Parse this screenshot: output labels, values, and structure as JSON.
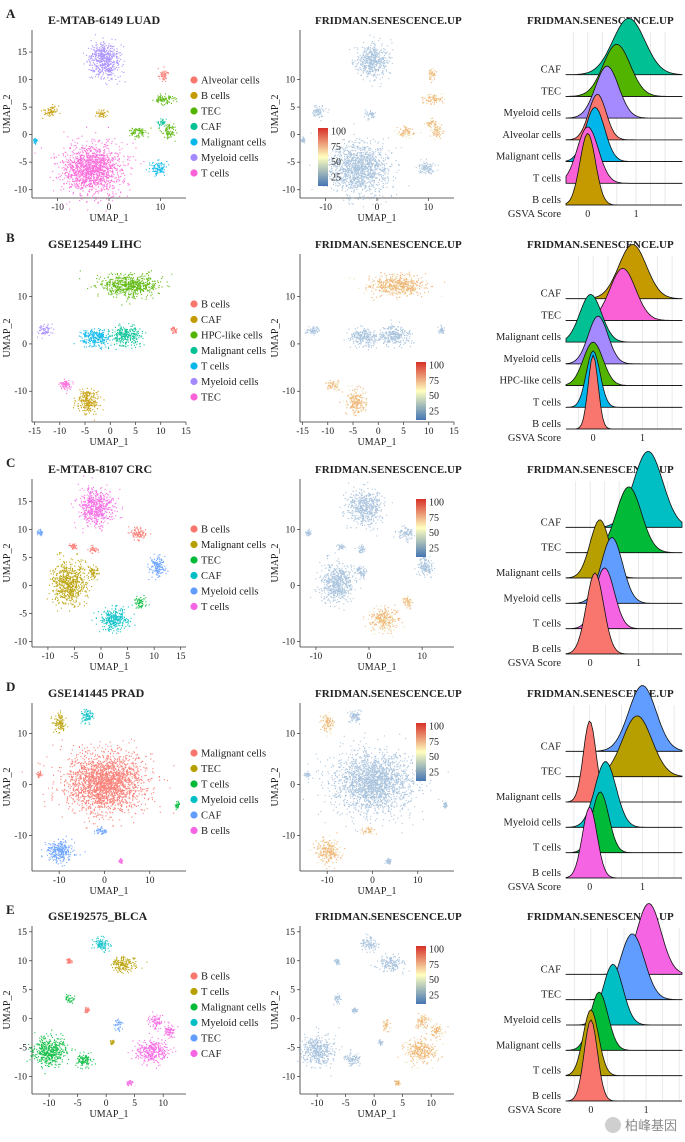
{
  "panels": [
    {
      "letter": "A",
      "dataset": "E-MTAB-6149 LUAD",
      "score_title": "FRIDMAN.SENESCENCE.UP",
      "ridge_title": "FRIDMAN.SENESCENCE.UP",
      "umap": {
        "xlabel": "UMAP_1",
        "ylabel": "UMAP_2",
        "xlim": [
          -15,
          15
        ],
        "ylim": [
          -11.5,
          19
        ],
        "xticks": [
          -10,
          0,
          10
        ],
        "yticks": [
          -10,
          -5,
          0,
          5,
          10,
          15
        ],
        "clusters": [
          {
            "label": "Myeloid cells",
            "x": -1,
            "y": 13.5,
            "rx": 3.3,
            "ry": 3.5
          },
          {
            "label": "T cells",
            "x": -3.5,
            "y": -6,
            "rx": 6.5,
            "ry": 5
          },
          {
            "label": "Alveolar cells",
            "x": 10.5,
            "y": 11,
            "rx": 1,
            "ry": 1.3
          },
          {
            "label": "TEC",
            "x": 10.8,
            "y": 6.5,
            "rx": 2.3,
            "ry": 0.9
          },
          {
            "label": "B cells",
            "x": -11.5,
            "y": 4.3,
            "rx": 1.5,
            "ry": 1.1
          },
          {
            "label": "B cells",
            "x": -1.5,
            "y": 3.8,
            "rx": 1.2,
            "ry": 0.8
          },
          {
            "label": "CAF",
            "x": 10.2,
            "y": 2.2,
            "rx": 0.9,
            "ry": 0.8
          },
          {
            "label": "TEC",
            "x": 5.5,
            "y": 0.5,
            "rx": 1.8,
            "ry": 1
          },
          {
            "label": "TEC",
            "x": 11.5,
            "y": 0.8,
            "rx": 1.2,
            "ry": 1.5
          },
          {
            "label": "Malignant cells",
            "x": 9.5,
            "y": -6,
            "rx": 1.8,
            "ry": 1.3
          },
          {
            "label": "Malignant cells",
            "x": -14.5,
            "y": -1,
            "rx": 0.4,
            "ry": 0.5
          }
        ],
        "legend": [
          "Alveolar cells",
          "B cells",
          "TEC",
          "CAF",
          "Malignant cells",
          "Myeloid cells",
          "T cells"
        ]
      },
      "score_umap": {
        "xlabel": "UMAP_1",
        "ylabel": "UMAP_2",
        "xticks": [
          -10,
          0,
          10
        ],
        "yticks": [
          -10,
          -5,
          0,
          5,
          10
        ],
        "colorbar_ticks": [
          100,
          75,
          50,
          25
        ],
        "colorbar_place": "left"
      },
      "ridge": {
        "xlabel": "GSVA Score",
        "xticks": [
          0,
          1
        ],
        "xlim": [
          -0.45,
          1.95
        ],
        "rows": [
          {
            "label": "CAF",
            "mean": 0.85,
            "sd": 0.33,
            "height": 2.6
          },
          {
            "label": "TEC",
            "mean": 0.6,
            "sd": 0.28,
            "height": 2.4
          },
          {
            "label": "Myeloid cells",
            "mean": 0.4,
            "sd": 0.24,
            "height": 2.4
          },
          {
            "label": "Alveolar cells",
            "mean": 0.2,
            "sd": 0.18,
            "height": 2.1
          },
          {
            "label": "Malignant cells",
            "mean": 0.15,
            "sd": 0.2,
            "height": 2.5
          },
          {
            "label": "T cells",
            "mean": 0.0,
            "sd": 0.22,
            "height": 2.6
          },
          {
            "label": "B cells",
            "mean": 0.0,
            "sd": 0.16,
            "height": 3.3
          }
        ]
      }
    },
    {
      "letter": "B",
      "dataset": "GSE125449 LIHC",
      "score_title": "FRIDMAN.SENESCENCE.UP",
      "ridge_title": "FRIDMAN.SENESCENCE.UP",
      "umap": {
        "xlabel": "UMAP_1",
        "ylabel": "UMAP_2",
        "xlim": [
          -15.5,
          15
        ],
        "ylim": [
          -16.5,
          19
        ],
        "xticks": [
          -15,
          -10,
          -5,
          0,
          5,
          10,
          15
        ],
        "yticks": [
          -10,
          0,
          10
        ],
        "clusters": [
          {
            "label": "HPC-like cells",
            "x": 3.5,
            "y": 12.5,
            "rx": 6.5,
            "ry": 2.5
          },
          {
            "label": "Myeloid cells",
            "x": -13,
            "y": 3,
            "rx": 1.6,
            "ry": 1.2
          },
          {
            "label": "T cells",
            "x": -3,
            "y": 1.5,
            "rx": 3.3,
            "ry": 2.1
          },
          {
            "label": "Malignant cells",
            "x": 3,
            "y": 1.8,
            "rx": 3.4,
            "ry": 2.3
          },
          {
            "label": "B cells",
            "x": 12.5,
            "y": 3,
            "rx": 0.7,
            "ry": 0.9
          },
          {
            "label": "TEC",
            "x": -9,
            "y": -8.5,
            "rx": 1.5,
            "ry": 1.2
          },
          {
            "label": "CAF",
            "x": -4.5,
            "y": -12,
            "rx": 2.3,
            "ry": 2.8
          }
        ],
        "legend": [
          "B cells",
          "CAF",
          "HPC-like cells",
          "Malignant cells",
          "T cells",
          "Myeloid cells",
          "TEC"
        ]
      },
      "score_umap": {
        "xlabel": "UMAP_1",
        "ylabel": "UMAP_2",
        "xticks": [
          -15,
          -10,
          -5,
          0,
          5,
          10,
          15
        ],
        "yticks": [
          -10,
          0,
          10
        ],
        "colorbar_ticks": [
          100,
          75,
          50,
          25
        ],
        "colorbar_place": "bottom-right"
      },
      "ridge": {
        "xlabel": "GSVA Score",
        "xticks": [
          0,
          1
        ],
        "xlim": [
          -0.55,
          1.8
        ],
        "rows": [
          {
            "label": "CAF",
            "mean": 0.8,
            "sd": 0.28,
            "height": 2.5
          },
          {
            "label": "TEC",
            "mean": 0.6,
            "sd": 0.26,
            "height": 2.4
          },
          {
            "label": "Malignant cells",
            "mean": -0.05,
            "sd": 0.22,
            "height": 2.2
          },
          {
            "label": "Myeloid cells",
            "mean": 0.1,
            "sd": 0.2,
            "height": 2.2
          },
          {
            "label": "HPC-like cells",
            "mean": 0.0,
            "sd": 0.2,
            "height": 2.0
          },
          {
            "label": "T cells",
            "mean": 0.0,
            "sd": 0.14,
            "height": 2.6
          },
          {
            "label": "B cells",
            "mean": 0.0,
            "sd": 0.1,
            "height": 3.4
          }
        ]
      }
    },
    {
      "letter": "C",
      "dataset": "E-MTAB-8107 CRC",
      "score_title": "FRIDMAN.SENESCENCE.UP",
      "ridge_title": "FRIDMAN.SENESCENCE.UP",
      "umap": {
        "xlabel": "UMAP_1",
        "ylabel": "UMAP_2",
        "xlim": [
          -13,
          16
        ],
        "ylim": [
          -11,
          19
        ],
        "xticks": [
          -10,
          -5,
          0,
          5,
          10,
          15
        ],
        "yticks": [
          -10,
          -5,
          0,
          5,
          10,
          15
        ],
        "clusters": [
          {
            "label": "T cells",
            "x": -1,
            "y": 14,
            "rx": 3.5,
            "ry": 3.6
          },
          {
            "label": "B cells",
            "x": 7,
            "y": 9.3,
            "rx": 1.7,
            "ry": 1.2
          },
          {
            "label": "B cells",
            "x": -5.3,
            "y": 7,
            "rx": 0.8,
            "ry": 0.6
          },
          {
            "label": "B cells",
            "x": -1.5,
            "y": 6.5,
            "rx": 0.9,
            "ry": 0.8
          },
          {
            "label": "Myeloid cells",
            "x": -11.5,
            "y": 9.5,
            "rx": 0.6,
            "ry": 0.5
          },
          {
            "label": "Myeloid cells",
            "x": 10.5,
            "y": 3.5,
            "rx": 1.6,
            "ry": 2
          },
          {
            "label": "Malignant cells",
            "x": -6,
            "y": 0.5,
            "rx": 3.5,
            "ry": 4
          },
          {
            "label": "Malignant cells",
            "x": -1.5,
            "y": 2.5,
            "rx": 1.1,
            "ry": 1.3
          },
          {
            "label": "TEC",
            "x": 7.2,
            "y": -3,
            "rx": 1.2,
            "ry": 1.1
          },
          {
            "label": "CAF",
            "x": 2.5,
            "y": -6,
            "rx": 3,
            "ry": 2.2
          }
        ],
        "legend": [
          "B cells",
          "Malignant cells",
          "TEC",
          "CAF",
          "Myeloid cells",
          "T cells"
        ]
      },
      "score_umap": {
        "xlabel": "UMAP_1",
        "ylabel": "UMAP_2",
        "xticks": [
          -10,
          0,
          10
        ],
        "yticks": [
          -10,
          0,
          10
        ],
        "colorbar_ticks": [
          100,
          75,
          50,
          25
        ],
        "colorbar_place": "top-right"
      },
      "ridge": {
        "xlabel": "GSVA Score",
        "xticks": [
          0,
          1
        ],
        "xlim": [
          -0.5,
          1.9
        ],
        "rows": [
          {
            "label": "CAF",
            "mean": 1.2,
            "sd": 0.3,
            "height": 3.0
          },
          {
            "label": "TEC",
            "mean": 0.8,
            "sd": 0.26,
            "height": 2.6
          },
          {
            "label": "Malignant cells",
            "mean": 0.2,
            "sd": 0.2,
            "height": 2.3
          },
          {
            "label": "Myeloid cells",
            "mean": 0.45,
            "sd": 0.22,
            "height": 2.6
          },
          {
            "label": "T cells",
            "mean": 0.3,
            "sd": 0.2,
            "height": 2.4
          },
          {
            "label": "B cells",
            "mean": 0.1,
            "sd": 0.18,
            "height": 3.2
          }
        ]
      }
    },
    {
      "letter": "D",
      "dataset": "GSE141445 PRAD",
      "score_title": "FRIDMAN.SENESCENCE.UP",
      "ridge_title": "FRIDMAN.SENESCENCE.UP",
      "umap": {
        "xlabel": "UMAP_1",
        "ylabel": "UMAP_2",
        "xlim": [
          -16,
          18
        ],
        "ylim": [
          -17,
          16
        ],
        "xticks": [
          -10,
          0,
          10
        ],
        "yticks": [
          -10,
          0,
          10
        ],
        "clusters": [
          {
            "label": "Malignant cells",
            "x": 0,
            "y": 0.5,
            "rx": 9.5,
            "ry": 6.5
          },
          {
            "label": "TEC",
            "x": -10,
            "y": 12,
            "rx": 1.5,
            "ry": 2
          },
          {
            "label": "Myeloid cells",
            "x": -4,
            "y": 13.5,
            "rx": 1.5,
            "ry": 1.5
          },
          {
            "label": "T cells",
            "x": 16,
            "y": -4,
            "rx": 0.5,
            "ry": 0.8
          },
          {
            "label": "CAF",
            "x": -10,
            "y": -13,
            "rx": 3,
            "ry": 2.5
          },
          {
            "label": "CAF",
            "x": -1,
            "y": -9,
            "rx": 1.5,
            "ry": 0.8
          },
          {
            "label": "B cells",
            "x": 3.5,
            "y": -15,
            "rx": 0.6,
            "ry": 0.5
          },
          {
            "label": "Malignant cells",
            "x": -14.5,
            "y": 2,
            "rx": 0.6,
            "ry": 0.6
          }
        ],
        "legend": [
          "Malignant cells",
          "TEC",
          "T cells",
          "Myeloid cells",
          "CAF",
          "B cells"
        ]
      },
      "score_umap": {
        "xlabel": "UMAP_1",
        "ylabel": "UMAP_2",
        "xticks": [
          -10,
          0,
          10
        ],
        "yticks": [
          -10,
          0,
          10
        ],
        "colorbar_ticks": [
          100,
          75,
          50,
          25
        ],
        "colorbar_place": "top-right"
      },
      "ridge": {
        "xlabel": "GSVA Score",
        "xticks": [
          0,
          1
        ],
        "xlim": [
          -0.45,
          1.75
        ],
        "rows": [
          {
            "label": "CAF",
            "mean": 1.0,
            "sd": 0.26,
            "height": 2.6
          },
          {
            "label": "TEC",
            "mean": 0.9,
            "sd": 0.28,
            "height": 2.4
          },
          {
            "label": "Malignant cells",
            "mean": 0.0,
            "sd": 0.12,
            "height": 3.2
          },
          {
            "label": "Myeloid cells",
            "mean": 0.3,
            "sd": 0.2,
            "height": 2.6
          },
          {
            "label": "T cells",
            "mean": 0.2,
            "sd": 0.16,
            "height": 2.4
          },
          {
            "label": "B cells",
            "mean": 0.0,
            "sd": 0.14,
            "height": 2.8
          }
        ]
      }
    },
    {
      "letter": "E",
      "dataset": "GSE192575_BLCA",
      "score_title": "FRIDMAN.SENESCENCE.UP",
      "ridge_title": "FRIDMAN.SENESCENCE.UP",
      "umap": {
        "xlabel": "UMAP_1",
        "ylabel": "UMAP_2",
        "xlim": [
          -13,
          14
        ],
        "ylim": [
          -13,
          16
        ],
        "xticks": [
          -10,
          -5,
          0,
          5,
          10
        ],
        "yticks": [
          -10,
          -5,
          0,
          5,
          10,
          15
        ],
        "clusters": [
          {
            "label": "Myeloid cells",
            "x": -1,
            "y": 13,
            "rx": 1.5,
            "ry": 1.3
          },
          {
            "label": "T cells",
            "x": 3,
            "y": 9.5,
            "rx": 2.3,
            "ry": 1.5
          },
          {
            "label": "B cells",
            "x": -6.5,
            "y": 10,
            "rx": 0.5,
            "ry": 0.5
          },
          {
            "label": "Malignant cells",
            "x": -6.5,
            "y": 3.5,
            "rx": 0.8,
            "ry": 0.9
          },
          {
            "label": "B cells",
            "x": -3.5,
            "y": 1.5,
            "rx": 0.4,
            "ry": 0.5
          },
          {
            "label": "TEC",
            "x": 2,
            "y": -1,
            "rx": 0.7,
            "ry": 1.1
          },
          {
            "label": "CAF",
            "x": 8.5,
            "y": -0.5,
            "rx": 1.3,
            "ry": 1.3
          },
          {
            "label": "Malignant cells",
            "x": -10,
            "y": -5.5,
            "rx": 3.2,
            "ry": 2.8
          },
          {
            "label": "Malignant cells",
            "x": -4,
            "y": -7,
            "rx": 1.5,
            "ry": 1.3
          },
          {
            "label": "CAF",
            "x": 8,
            "y": -5.5,
            "rx": 3,
            "ry": 2.2
          },
          {
            "label": "CAF",
            "x": 11,
            "y": -2,
            "rx": 1.2,
            "ry": 1.3
          },
          {
            "label": "CAF",
            "x": 4,
            "y": -11,
            "rx": 0.6,
            "ry": 0.5
          },
          {
            "label": "T cells",
            "x": 1,
            "y": -4,
            "rx": 0.4,
            "ry": 0.4
          }
        ],
        "legend": [
          "B cells",
          "T cells",
          "Malignant cells",
          "Myeloid cells",
          "TEC",
          "CAF"
        ]
      },
      "score_umap": {
        "xlabel": "UMAP_1",
        "ylabel": "UMAP_2",
        "xticks": [
          -10,
          -5,
          0,
          5,
          10
        ],
        "yticks": [
          -10,
          -5,
          0,
          5,
          10,
          15
        ],
        "colorbar_ticks": [
          100,
          75,
          50,
          25
        ],
        "colorbar_place": "top-right"
      },
      "ridge": {
        "xlabel": "GSVA Score",
        "xticks": [
          0,
          1
        ],
        "xlim": [
          -0.45,
          1.65
        ],
        "rows": [
          {
            "label": "CAF",
            "mean": 1.05,
            "sd": 0.22,
            "height": 2.8
          },
          {
            "label": "TEC",
            "mean": 0.75,
            "sd": 0.22,
            "height": 2.6
          },
          {
            "label": "Myeloid cells",
            "mean": 0.4,
            "sd": 0.18,
            "height": 2.4
          },
          {
            "label": "Malignant cells",
            "mean": 0.15,
            "sd": 0.16,
            "height": 2.3
          },
          {
            "label": "T cells",
            "mean": 0.0,
            "sd": 0.14,
            "height": 2.6
          },
          {
            "label": "B cells",
            "mean": 0.0,
            "sd": 0.12,
            "height": 3.2
          }
        ]
      }
    }
  ],
  "cell_colors": {
    "Alveolar cells": "#E8735E",
    "B cells": "#F46C61",
    "CAF": "#B59A12",
    "TEC": "#2EB35A",
    "HPC-like cells": "#56B027",
    "Malignant cells": "#12B7C2",
    "Myeloid cells": "#7E85F1",
    "T cells": "#EC5CD5"
  },
  "panel_palettes": [
    {
      "Alveolar cells": "#F8766D",
      "B cells": "#C49A00",
      "TEC": "#53B400",
      "CAF": "#00C094",
      "Malignant cells": "#00B6EB",
      "Myeloid cells": "#A58AFF",
      "T cells": "#FB61D7"
    },
    {
      "B cells": "#F8766D",
      "CAF": "#C49A00",
      "HPC-like cells": "#53B400",
      "Malignant cells": "#00C094",
      "T cells": "#00B6EB",
      "Myeloid cells": "#A58AFF",
      "TEC": "#FB61D7"
    },
    {
      "B cells": "#F8766D",
      "Malignant cells": "#B79F00",
      "TEC": "#00BA38",
      "CAF": "#00BFC4",
      "Myeloid cells": "#619CFF",
      "T cells": "#F564E3"
    },
    {
      "Malignant cells": "#F8766D",
      "TEC": "#B79F00",
      "T cells": "#00BA38",
      "Myeloid cells": "#00BFC4",
      "CAF": "#619CFF",
      "B cells": "#F564E3"
    },
    {
      "B cells": "#F8766D",
      "T cells": "#B79F00",
      "Malignant cells": "#00BA38",
      "Myeloid cells": "#00BFC4",
      "TEC": "#619CFF",
      "CAF": "#F564E3"
    }
  ],
  "colors": {
    "low": "#4575B4",
    "mid": "#FFFFBF",
    "high": "#D73027",
    "cloud": "#9DBBD8"
  },
  "watermark": "柏峰基因",
  "wm_icon": "wechat-logo-icon"
}
